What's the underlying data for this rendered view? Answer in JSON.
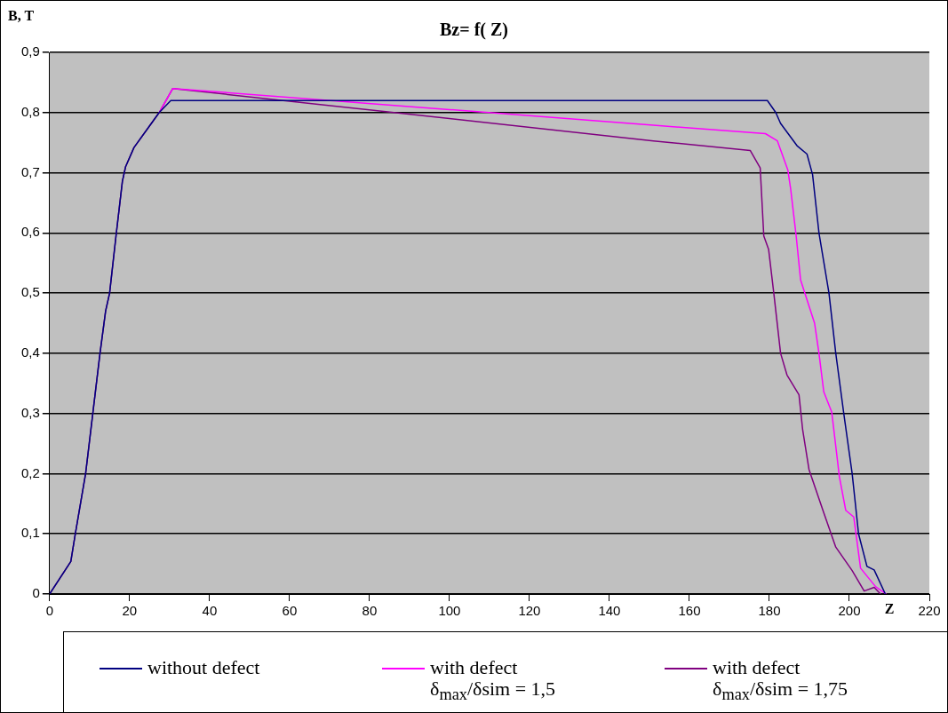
{
  "chart_data": {
    "type": "line",
    "title": "Bz= f( Z)",
    "xlabel": "Z",
    "ylabel": "B, T",
    "xlim": [
      0,
      220
    ],
    "xticks": [
      0,
      20,
      40,
      60,
      80,
      100,
      120,
      140,
      160,
      180,
      200,
      220
    ],
    "ylim": [
      0,
      0.9
    ],
    "yticks": [
      {
        "value": 0,
        "label": "0"
      },
      {
        "value": 0.1,
        "label": "0,1"
      },
      {
        "value": 0.2,
        "label": "0,2"
      },
      {
        "value": 0.3,
        "label": "0,3"
      },
      {
        "value": 0.4,
        "label": "0,4"
      },
      {
        "value": 0.5,
        "label": "0,5"
      },
      {
        "value": 0.6,
        "label": "0,6"
      },
      {
        "value": 0.7,
        "label": "0,7"
      },
      {
        "value": 0.8,
        "label": "0,8"
      },
      {
        "value": 0.9,
        "label": "0,9"
      }
    ],
    "grid": "y",
    "legend": "bottom",
    "marker": "none",
    "line_style": "solid",
    "series": [
      {
        "name": "without defect",
        "color": "#000080",
        "x": [
          0,
          5.3,
          6.4,
          9,
          10.8,
          12.6,
          14,
          15,
          16.6,
          18.2,
          19,
          21.1,
          24.8,
          27.4,
          30.3,
          179.5,
          181.6,
          182.8,
          186.9,
          189.4,
          190.8,
          192.4,
          194.9,
          196.6,
          198.6,
          200.7,
          202.3,
          204.4,
          206.2,
          209
        ],
        "values": [
          0,
          0.054,
          0.099,
          0.2,
          0.3,
          0.4,
          0.47,
          0.5,
          0.595,
          0.686,
          0.71,
          0.742,
          0.776,
          0.8,
          0.82,
          0.82,
          0.8,
          0.782,
          0.745,
          0.731,
          0.697,
          0.6,
          0.5,
          0.4,
          0.3,
          0.2,
          0.1,
          0.046,
          0.04,
          0
        ]
      },
      {
        "name": "with defect\nδ$_{max}$/δsim = 1,5",
        "color": "#ff00ff",
        "x": [
          27.4,
          30.8,
          100,
          151,
          179,
          182,
          184.6,
          185.3,
          186.7,
          187.8,
          191.3,
          192.4,
          193.6,
          195.6,
          197.5,
          199.1,
          201.1,
          202.8,
          206.6,
          209.2
        ],
        "values": [
          0.8,
          0.84,
          0.805,
          0.779,
          0.765,
          0.753,
          0.705,
          0.674,
          0.595,
          0.522,
          0.45,
          0.4,
          0.336,
          0.302,
          0.195,
          0.139,
          0.128,
          0.043,
          0.012,
          0
        ]
      },
      {
        "name": "with defect\nδ$_{max}$/δsim = 1,75",
        "color": "#800080",
        "x": [
          0,
          5.3,
          6.4,
          9,
          10.8,
          12.6,
          14,
          15,
          16.6,
          18.2,
          19,
          21.1,
          24.8,
          27.4,
          30.8,
          100,
          151,
          175.2,
          177.7,
          178.6,
          179.8,
          181.1,
          182.8,
          184.4,
          187.4,
          188.3,
          189.9,
          193.6,
          196.6,
          200.7,
          203.7,
          206.2,
          207.8
        ],
        "values": [
          0,
          0.054,
          0.099,
          0.2,
          0.3,
          0.4,
          0.47,
          0.5,
          0.595,
          0.686,
          0.71,
          0.742,
          0.776,
          0.8,
          0.84,
          0.79,
          0.753,
          0.737,
          0.708,
          0.595,
          0.573,
          0.5,
          0.4,
          0.364,
          0.331,
          0.274,
          0.207,
          0.135,
          0.078,
          0.039,
          0.005,
          0.011,
          0
        ]
      }
    ]
  }
}
